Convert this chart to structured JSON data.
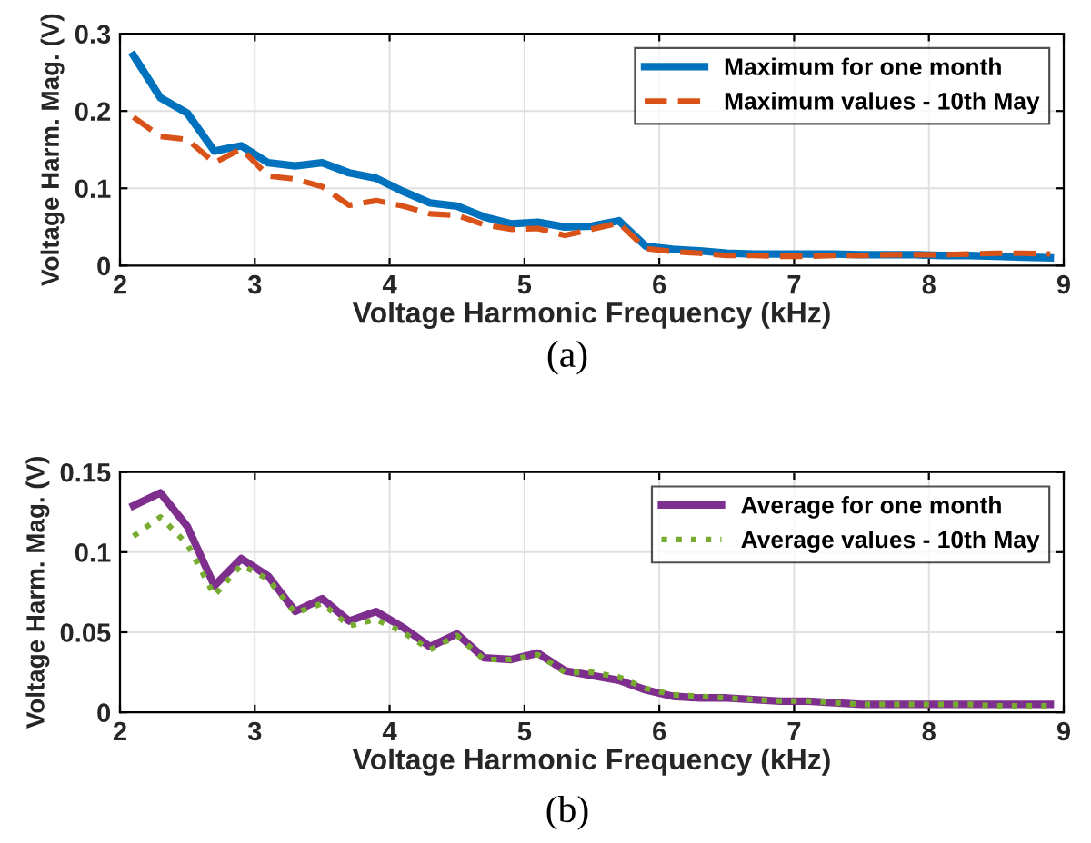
{
  "chart_data": [
    {
      "type": "line",
      "xlabel": "Voltage Harmonic Frequency (kHz)",
      "ylabel": "Voltage Harm. Mag. (V)",
      "annotations": [
        "(a)"
      ],
      "x": [
        2.1,
        2.3,
        2.5,
        2.7,
        2.9,
        3.1,
        3.3,
        3.5,
        3.7,
        3.9,
        4.1,
        4.3,
        4.5,
        4.7,
        4.9,
        5.1,
        5.3,
        5.5,
        5.7,
        5.9,
        6.1,
        6.3,
        6.5,
        6.7,
        6.9,
        7.1,
        7.3,
        7.5,
        7.7,
        7.9,
        8.1,
        8.3,
        8.5,
        8.7,
        8.9
      ],
      "series": [
        {
          "name": "Maximum for one month",
          "color": "#0072bd",
          "line_style": "solid",
          "values": [
            0.272,
            0.217,
            0.197,
            0.148,
            0.155,
            0.133,
            0.129,
            0.133,
            0.12,
            0.113,
            0.096,
            0.081,
            0.077,
            0.063,
            0.054,
            0.056,
            0.05,
            0.051,
            0.058,
            0.025,
            0.021,
            0.019,
            0.016,
            0.015,
            0.015,
            0.015,
            0.015,
            0.014,
            0.014,
            0.014,
            0.013,
            0.013,
            0.012,
            0.011,
            0.01
          ]
        },
        {
          "name": "Maximum values - 10th May",
          "color": "#d95319",
          "line_style": "dashed",
          "values": [
            0.192,
            0.167,
            0.163,
            0.133,
            0.151,
            0.116,
            0.112,
            0.102,
            0.078,
            0.084,
            0.077,
            0.067,
            0.065,
            0.053,
            0.047,
            0.048,
            0.039,
            0.047,
            0.055,
            0.022,
            0.018,
            0.016,
            0.013,
            0.013,
            0.012,
            0.012,
            0.013,
            0.013,
            0.014,
            0.014,
            0.014,
            0.015,
            0.016,
            0.016,
            0.015
          ]
        }
      ],
      "xlim": [
        2,
        9
      ],
      "xticks": [
        2,
        3,
        4,
        5,
        6,
        7,
        8,
        9
      ],
      "ylim": [
        0,
        0.3
      ],
      "yticks": [
        0,
        0.1,
        0.2,
        0.3
      ],
      "grid": true,
      "legend": "top right"
    },
    {
      "type": "line",
      "xlabel": "Voltage Harmonic Frequency (kHz)",
      "ylabel": "Voltage Harm. Mag. (V)",
      "annotations": [
        "(b)"
      ],
      "x": [
        2.1,
        2.3,
        2.5,
        2.7,
        2.9,
        3.1,
        3.3,
        3.5,
        3.7,
        3.9,
        4.1,
        4.3,
        4.5,
        4.7,
        4.9,
        5.1,
        5.3,
        5.5,
        5.7,
        5.9,
        6.1,
        6.3,
        6.5,
        6.7,
        6.9,
        7.1,
        7.3,
        7.5,
        7.7,
        7.9,
        8.1,
        8.3,
        8.5,
        8.7,
        8.9
      ],
      "series": [
        {
          "name": "Average for one month",
          "color": "#7e2f8e",
          "line_style": "solid",
          "values": [
            0.129,
            0.137,
            0.116,
            0.079,
            0.096,
            0.085,
            0.063,
            0.071,
            0.057,
            0.063,
            0.053,
            0.041,
            0.049,
            0.034,
            0.033,
            0.037,
            0.026,
            0.023,
            0.02,
            0.014,
            0.01,
            0.009,
            0.009,
            0.008,
            0.007,
            0.007,
            0.006,
            0.005,
            0.005,
            0.005,
            0.005,
            0.005,
            0.005,
            0.005,
            0.005
          ]
        },
        {
          "name": "Average values - 10th May",
          "color": "#77ac30",
          "line_style": "dotted",
          "values": [
            0.11,
            0.122,
            0.105,
            0.073,
            0.092,
            0.083,
            0.062,
            0.068,
            0.054,
            0.058,
            0.05,
            0.039,
            0.048,
            0.033,
            0.033,
            0.036,
            0.025,
            0.025,
            0.022,
            0.015,
            0.011,
            0.01,
            0.009,
            0.008,
            0.007,
            0.007,
            0.006,
            0.005,
            0.005,
            0.005,
            0.005,
            0.005,
            0.004,
            0.004,
            0.004
          ]
        }
      ],
      "xlim": [
        2,
        9
      ],
      "xticks": [
        2,
        3,
        4,
        5,
        6,
        7,
        8,
        9
      ],
      "ylim": [
        0,
        0.15
      ],
      "yticks": [
        0,
        0.05,
        0.1,
        0.15
      ],
      "grid": true,
      "legend": "top right"
    }
  ]
}
